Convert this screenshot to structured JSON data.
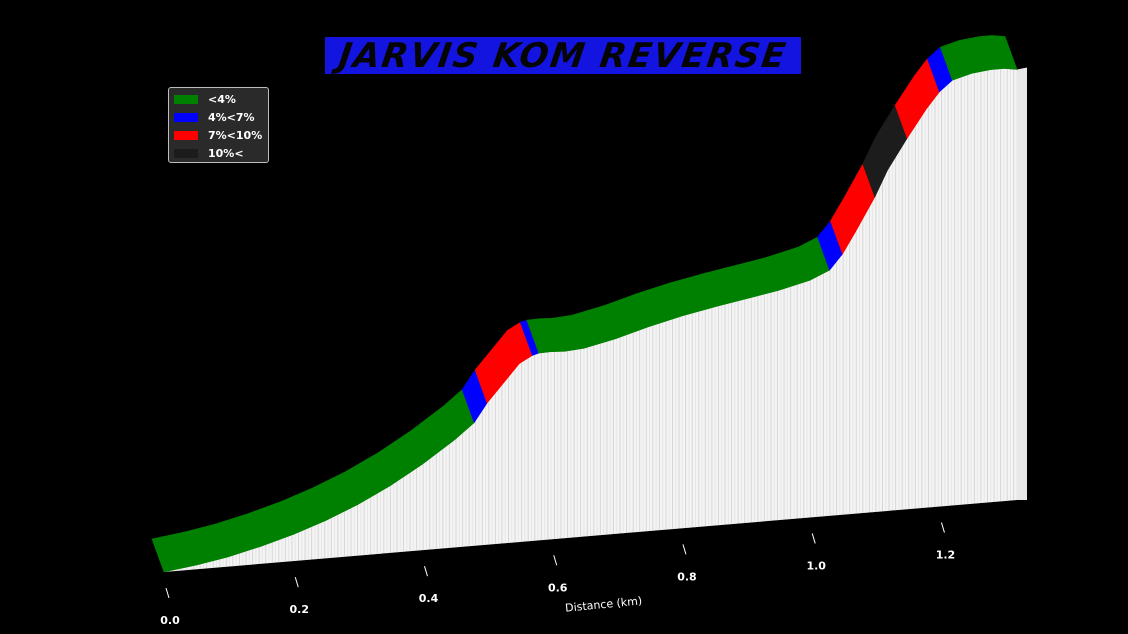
{
  "title": "JARVIS KOM REVERSE",
  "legend": [
    {
      "label": "<4%",
      "color": "#008000"
    },
    {
      "label": "4%<7%",
      "color": "#0000ff"
    },
    {
      "label": "7%<10%",
      "color": "#ff0000"
    },
    {
      "label": "10%<",
      "color": "#1c1c1c"
    }
  ],
  "chart_data": {
    "type": "area",
    "title": "JARVIS KOM REVERSE",
    "xlabel": "Distance (km)",
    "ylabel": "",
    "xlim": [
      0,
      1.32
    ],
    "x_ticks": [
      "0.0",
      "0.2",
      "0.4",
      "0.6",
      "0.8",
      "1.0",
      "1.2"
    ],
    "x_tick_values": [
      0.0,
      0.2,
      0.4,
      0.6,
      0.8,
      1.0,
      1.2
    ],
    "legend_placement": "top-left",
    "grid": false,
    "series": [
      {
        "x": [
          0.0,
          0.05,
          0.1,
          0.15,
          0.2,
          0.25,
          0.3,
          0.35,
          0.4,
          0.45,
          0.48,
          0.5,
          0.53,
          0.55,
          0.57,
          0.58,
          0.6,
          0.62,
          0.65,
          0.7,
          0.75,
          0.8,
          0.85,
          0.9,
          0.95,
          1.0,
          1.03,
          1.05,
          1.07,
          1.1,
          1.12,
          1.15,
          1.18,
          1.2,
          1.22,
          1.25,
          1.28,
          1.3,
          1.32
        ],
        "elevation": [
          0.0,
          1.2,
          2.8,
          5.0,
          7.6,
          10.8,
          14.6,
          19.2,
          24.6,
          30.8,
          35.2,
          40.5,
          46.8,
          51.0,
          53.0,
          53.5,
          53.6,
          53.4,
          53.8,
          55.8,
          58.4,
          60.6,
          62.4,
          64.0,
          65.6,
          67.8,
          70.2,
          74.5,
          80.5,
          90.0,
          97.5,
          106.0,
          114.0,
          118.5,
          121.5,
          123.0,
          123.6,
          123.6,
          123.0
        ],
        "gradient_class": [
          "<4%",
          "<4%",
          "<4%",
          "<4%",
          "<4%",
          "<4%",
          "<4%",
          "<4%",
          "<4%",
          "<4%",
          "4%<7%",
          "7%<10%",
          "7%<10%",
          "7%<10%",
          "4%<7%",
          "<4%",
          "<4%",
          "<4%",
          "<4%",
          "<4%",
          "<4%",
          "<4%",
          "<4%",
          "<4%",
          "<4%",
          "<4%",
          "4%<7%",
          "7%<10%",
          "7%<10%",
          "10%<",
          "10%<",
          "7%<10%",
          "7%<10%",
          "4%<7%",
          "<4%",
          "<4%",
          "<4%",
          "<4%",
          "<4%"
        ]
      }
    ]
  }
}
